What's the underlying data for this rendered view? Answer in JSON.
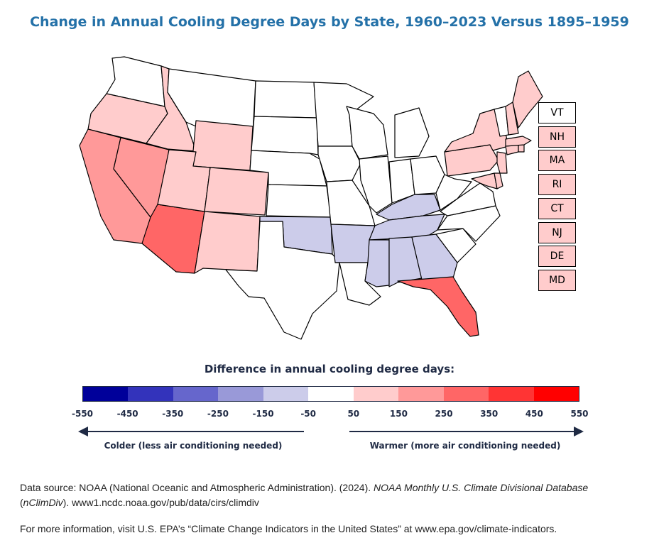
{
  "title": "Change in Annual Cooling Degree Days by State, 1960–2023 Versus 1895–1959",
  "colors": {
    "b5": "#00009a",
    "b4": "#3333bb",
    "b3": "#6666cc",
    "b2": "#9999d8",
    "b1": "#ccccea",
    "n": "#ffffff",
    "r1": "#ffcccc",
    "r2": "#ff9999",
    "r3": "#ff6666",
    "r4": "#ff3434",
    "r5": "#ff0000"
  },
  "states": {
    "WA": "n",
    "OR": "r1",
    "CA": "r2",
    "ID": "r1",
    "NV": "r2",
    "AZ": "r3",
    "MT": "n",
    "WY": "r1",
    "UT": "r1",
    "CO": "r1",
    "NM": "r1",
    "ND": "n",
    "SD": "n",
    "NE": "n",
    "KS": "n",
    "OK": "b1",
    "TX": "n",
    "MN": "n",
    "IA": "n",
    "MO": "n",
    "AR": "b1",
    "LA": "n",
    "WI": "n",
    "IL": "n",
    "MI": "n",
    "IN": "n",
    "OH": "n",
    "KY": "b1",
    "TN": "b1",
    "MS": "b1",
    "AL": "b1",
    "GA": "b1",
    "FL": "r3",
    "SC": "n",
    "NC": "n",
    "VA": "n",
    "WV": "n",
    "PA": "r1",
    "NY": "r1",
    "ME": "r1",
    "VT": "n",
    "NH": "r1",
    "MA": "r1",
    "RI": "r1",
    "CT": "r1",
    "NJ": "r1",
    "DE": "r1",
    "MD": "r1"
  },
  "ne_boxes": [
    "VT",
    "NH",
    "MA",
    "RI",
    "CT",
    "NJ",
    "DE",
    "MD"
  ],
  "legend": {
    "title": "Difference in annual cooling degree days:",
    "bins": [
      "b5",
      "b4",
      "b3",
      "b2",
      "b1",
      "n",
      "r1",
      "r2",
      "r3",
      "r4",
      "r5"
    ],
    "ticks": [
      "-550",
      "-450",
      "-350",
      "-250",
      "-150",
      "-50",
      "50",
      "150",
      "250",
      "350",
      "450",
      "550"
    ],
    "colder_label": "Colder (less air conditioning needed)",
    "warmer_label": "Warmer (more air conditioning needed)"
  },
  "footer": {
    "source_prefix": "Data source: NOAA (National Oceanic and Atmospheric Administration). (2024).",
    "source_title": "NOAA Monthly U.S. Climate Divisional Database",
    "source_open": "(",
    "source_abbr": "nClimDiv",
    "source_suffix": "). www1.ncdc.noaa.gov/pub/data/cirs/climdiv",
    "more_info": "For more information, visit U.S. EPA’s “Climate Change Indicators in the United States” at www.epa.gov/climate-indicators."
  }
}
